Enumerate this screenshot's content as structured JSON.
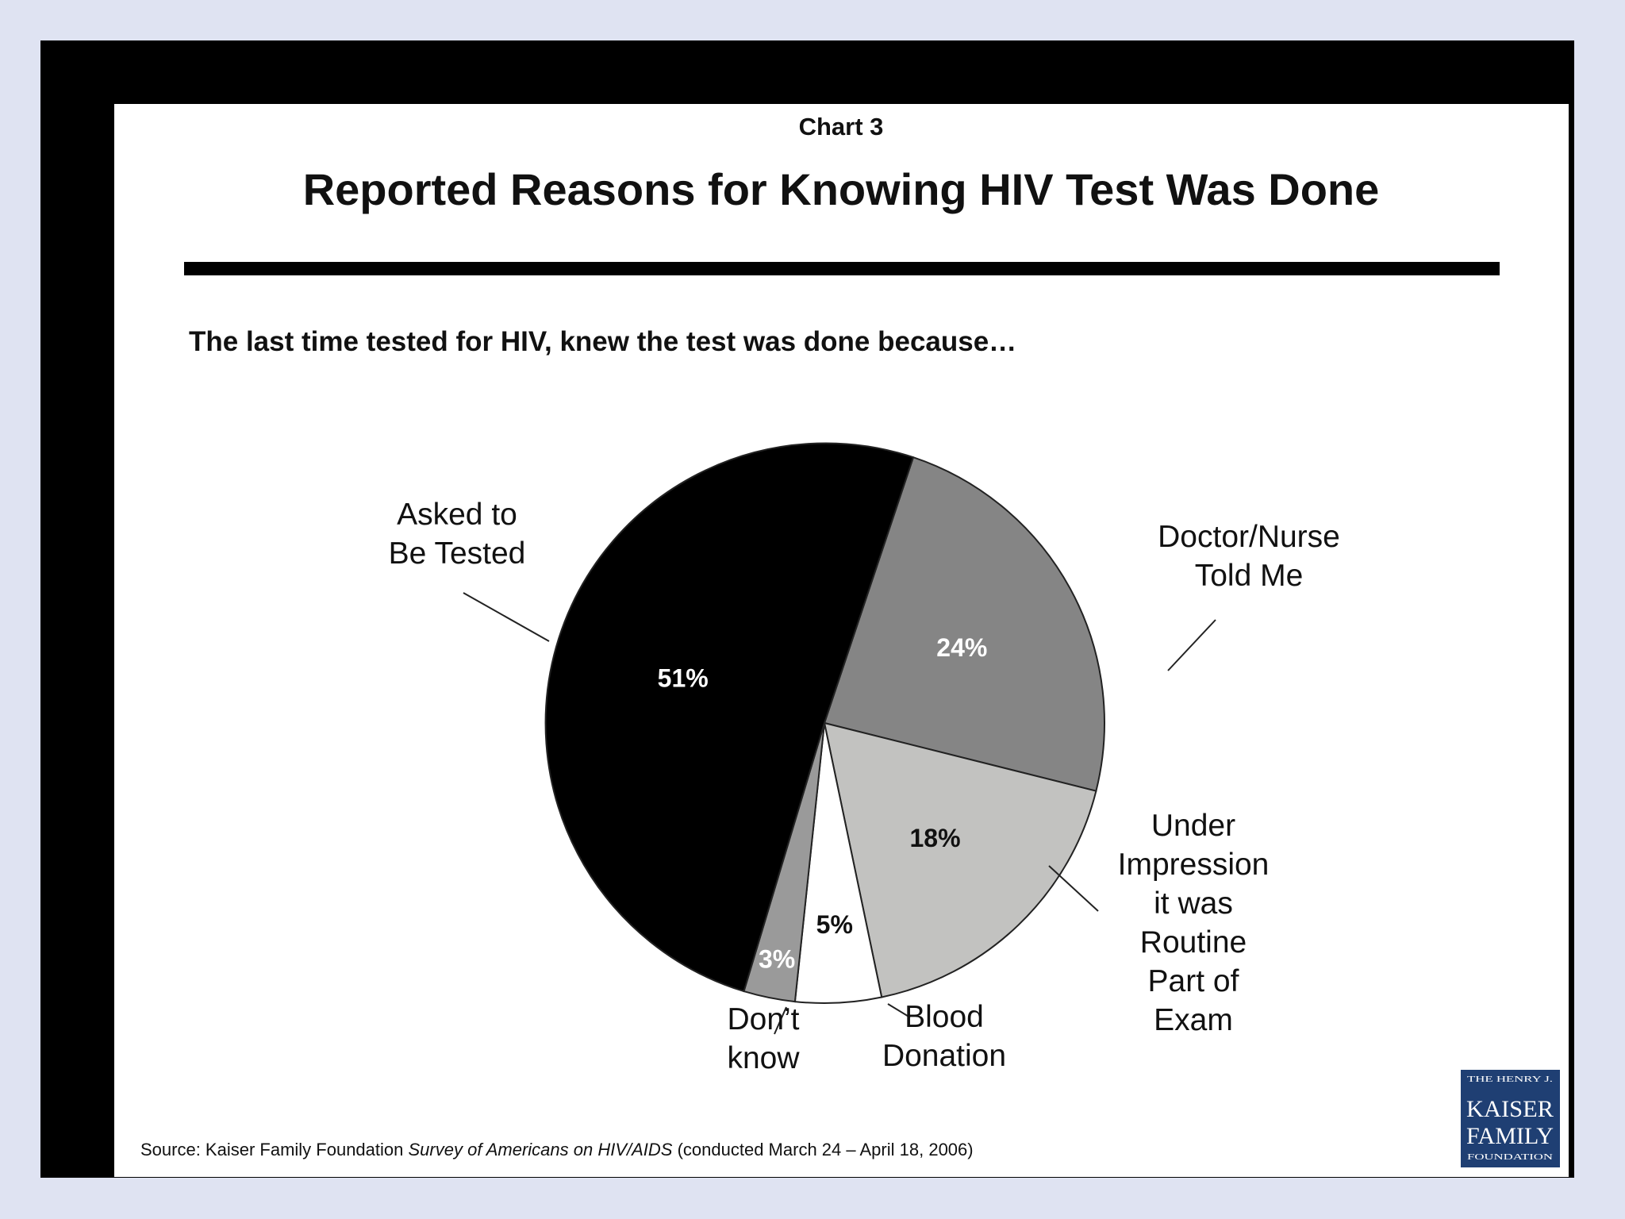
{
  "chart_data": {
    "type": "pie",
    "chart_number": "Chart 3",
    "title": "Reported Reasons for Knowing HIV Test Was Done",
    "subtitle": "The last time tested for HIV, knew the test was done because…",
    "slices": [
      {
        "label_lines": [
          "Doctor/Nurse",
          "Told Me"
        ],
        "value": 24,
        "value_label": "24%",
        "color": "#858585",
        "value_text_color": "#ffffff"
      },
      {
        "label_lines": [
          "Under",
          "Impression",
          "it was",
          "Routine",
          "Part of",
          "Exam"
        ],
        "value": 18,
        "value_label": "18%",
        "color": "#c2c2c0",
        "value_text_color": "#111111"
      },
      {
        "label_lines": [
          "Blood",
          "Donation"
        ],
        "value": 5,
        "value_label": "5%",
        "color": "#ffffff",
        "value_text_color": "#111111"
      },
      {
        "label_lines": [
          "Don’t",
          "know"
        ],
        "value": 3,
        "value_label": "3%",
        "color": "#9a9a9a",
        "value_text_color": "#ffffff"
      },
      {
        "label_lines": [
          "Asked to",
          "Be Tested"
        ],
        "value": 51,
        "value_label": "51%",
        "color": "#000000",
        "value_text_color": "#ffffff"
      }
    ],
    "source": {
      "prefix": "Source: Kaiser Family Foundation ",
      "italic": "Survey of Americans on HIV/AIDS",
      "suffix": " (conducted March 24 – April 18, 2006)"
    },
    "logo": {
      "lines": [
        "THE HENRY J.",
        "KAISER",
        "FAMILY",
        "FOUNDATION"
      ],
      "background": "#1f3f73",
      "text_color": "#ffffff"
    }
  }
}
